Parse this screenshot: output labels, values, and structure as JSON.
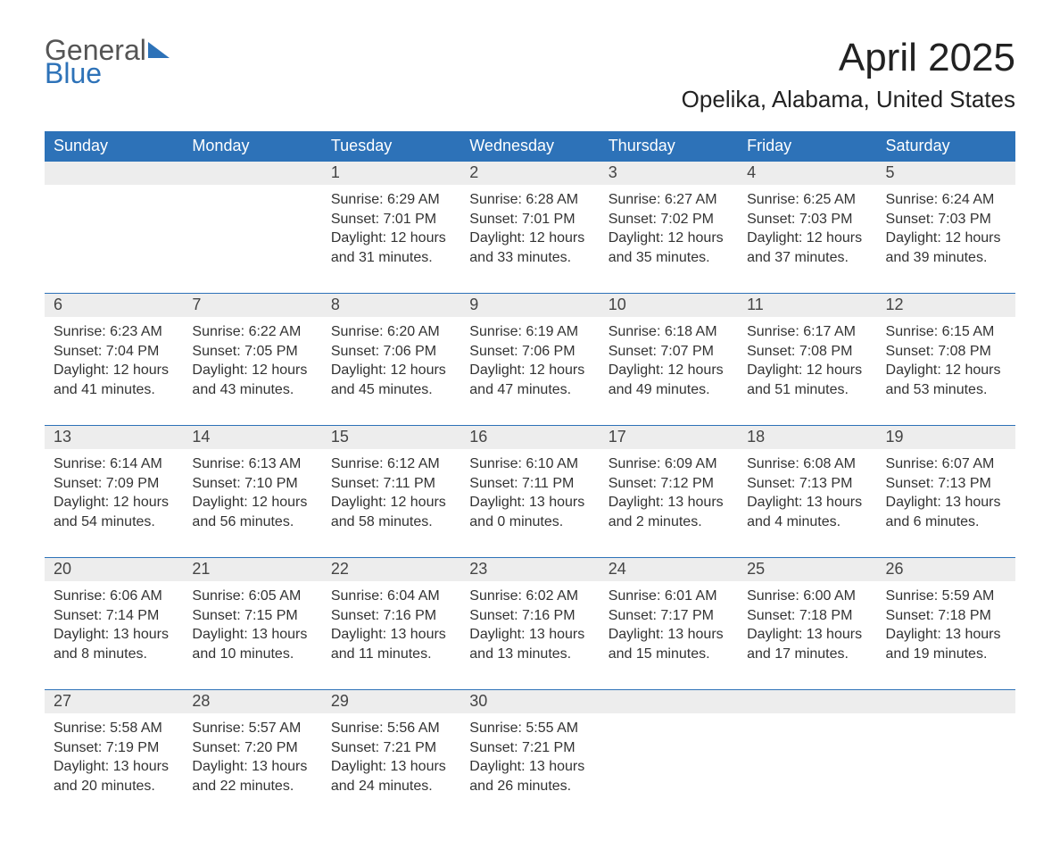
{
  "logo": {
    "general": "General",
    "blue": "Blue"
  },
  "title": "April 2025",
  "location": "Opelika, Alabama, United States",
  "colors": {
    "header_bg": "#2d72b8",
    "header_text": "#ffffff",
    "daynum_bg": "#ededed",
    "text": "#333333",
    "row_border": "#2d72b8",
    "page_bg": "#ffffff"
  },
  "typography": {
    "title_fontsize": 44,
    "location_fontsize": 26,
    "header_fontsize": 18,
    "daynum_fontsize": 18,
    "body_fontsize": 16
  },
  "weekday_headers": [
    "Sunday",
    "Monday",
    "Tuesday",
    "Wednesday",
    "Thursday",
    "Friday",
    "Saturday"
  ],
  "weeks": [
    [
      null,
      null,
      {
        "n": "1",
        "sr": "Sunrise: 6:29 AM",
        "ss": "Sunset: 7:01 PM",
        "d1": "Daylight: 12 hours",
        "d2": "and 31 minutes."
      },
      {
        "n": "2",
        "sr": "Sunrise: 6:28 AM",
        "ss": "Sunset: 7:01 PM",
        "d1": "Daylight: 12 hours",
        "d2": "and 33 minutes."
      },
      {
        "n": "3",
        "sr": "Sunrise: 6:27 AM",
        "ss": "Sunset: 7:02 PM",
        "d1": "Daylight: 12 hours",
        "d2": "and 35 minutes."
      },
      {
        "n": "4",
        "sr": "Sunrise: 6:25 AM",
        "ss": "Sunset: 7:03 PM",
        "d1": "Daylight: 12 hours",
        "d2": "and 37 minutes."
      },
      {
        "n": "5",
        "sr": "Sunrise: 6:24 AM",
        "ss": "Sunset: 7:03 PM",
        "d1": "Daylight: 12 hours",
        "d2": "and 39 minutes."
      }
    ],
    [
      {
        "n": "6",
        "sr": "Sunrise: 6:23 AM",
        "ss": "Sunset: 7:04 PM",
        "d1": "Daylight: 12 hours",
        "d2": "and 41 minutes."
      },
      {
        "n": "7",
        "sr": "Sunrise: 6:22 AM",
        "ss": "Sunset: 7:05 PM",
        "d1": "Daylight: 12 hours",
        "d2": "and 43 minutes."
      },
      {
        "n": "8",
        "sr": "Sunrise: 6:20 AM",
        "ss": "Sunset: 7:06 PM",
        "d1": "Daylight: 12 hours",
        "d2": "and 45 minutes."
      },
      {
        "n": "9",
        "sr": "Sunrise: 6:19 AM",
        "ss": "Sunset: 7:06 PM",
        "d1": "Daylight: 12 hours",
        "d2": "and 47 minutes."
      },
      {
        "n": "10",
        "sr": "Sunrise: 6:18 AM",
        "ss": "Sunset: 7:07 PM",
        "d1": "Daylight: 12 hours",
        "d2": "and 49 minutes."
      },
      {
        "n": "11",
        "sr": "Sunrise: 6:17 AM",
        "ss": "Sunset: 7:08 PM",
        "d1": "Daylight: 12 hours",
        "d2": "and 51 minutes."
      },
      {
        "n": "12",
        "sr": "Sunrise: 6:15 AM",
        "ss": "Sunset: 7:08 PM",
        "d1": "Daylight: 12 hours",
        "d2": "and 53 minutes."
      }
    ],
    [
      {
        "n": "13",
        "sr": "Sunrise: 6:14 AM",
        "ss": "Sunset: 7:09 PM",
        "d1": "Daylight: 12 hours",
        "d2": "and 54 minutes."
      },
      {
        "n": "14",
        "sr": "Sunrise: 6:13 AM",
        "ss": "Sunset: 7:10 PM",
        "d1": "Daylight: 12 hours",
        "d2": "and 56 minutes."
      },
      {
        "n": "15",
        "sr": "Sunrise: 6:12 AM",
        "ss": "Sunset: 7:11 PM",
        "d1": "Daylight: 12 hours",
        "d2": "and 58 minutes."
      },
      {
        "n": "16",
        "sr": "Sunrise: 6:10 AM",
        "ss": "Sunset: 7:11 PM",
        "d1": "Daylight: 13 hours",
        "d2": "and 0 minutes."
      },
      {
        "n": "17",
        "sr": "Sunrise: 6:09 AM",
        "ss": "Sunset: 7:12 PM",
        "d1": "Daylight: 13 hours",
        "d2": "and 2 minutes."
      },
      {
        "n": "18",
        "sr": "Sunrise: 6:08 AM",
        "ss": "Sunset: 7:13 PM",
        "d1": "Daylight: 13 hours",
        "d2": "and 4 minutes."
      },
      {
        "n": "19",
        "sr": "Sunrise: 6:07 AM",
        "ss": "Sunset: 7:13 PM",
        "d1": "Daylight: 13 hours",
        "d2": "and 6 minutes."
      }
    ],
    [
      {
        "n": "20",
        "sr": "Sunrise: 6:06 AM",
        "ss": "Sunset: 7:14 PM",
        "d1": "Daylight: 13 hours",
        "d2": "and 8 minutes."
      },
      {
        "n": "21",
        "sr": "Sunrise: 6:05 AM",
        "ss": "Sunset: 7:15 PM",
        "d1": "Daylight: 13 hours",
        "d2": "and 10 minutes."
      },
      {
        "n": "22",
        "sr": "Sunrise: 6:04 AM",
        "ss": "Sunset: 7:16 PM",
        "d1": "Daylight: 13 hours",
        "d2": "and 11 minutes."
      },
      {
        "n": "23",
        "sr": "Sunrise: 6:02 AM",
        "ss": "Sunset: 7:16 PM",
        "d1": "Daylight: 13 hours",
        "d2": "and 13 minutes."
      },
      {
        "n": "24",
        "sr": "Sunrise: 6:01 AM",
        "ss": "Sunset: 7:17 PM",
        "d1": "Daylight: 13 hours",
        "d2": "and 15 minutes."
      },
      {
        "n": "25",
        "sr": "Sunrise: 6:00 AM",
        "ss": "Sunset: 7:18 PM",
        "d1": "Daylight: 13 hours",
        "d2": "and 17 minutes."
      },
      {
        "n": "26",
        "sr": "Sunrise: 5:59 AM",
        "ss": "Sunset: 7:18 PM",
        "d1": "Daylight: 13 hours",
        "d2": "and 19 minutes."
      }
    ],
    [
      {
        "n": "27",
        "sr": "Sunrise: 5:58 AM",
        "ss": "Sunset: 7:19 PM",
        "d1": "Daylight: 13 hours",
        "d2": "and 20 minutes."
      },
      {
        "n": "28",
        "sr": "Sunrise: 5:57 AM",
        "ss": "Sunset: 7:20 PM",
        "d1": "Daylight: 13 hours",
        "d2": "and 22 minutes."
      },
      {
        "n": "29",
        "sr": "Sunrise: 5:56 AM",
        "ss": "Sunset: 7:21 PM",
        "d1": "Daylight: 13 hours",
        "d2": "and 24 minutes."
      },
      {
        "n": "30",
        "sr": "Sunrise: 5:55 AM",
        "ss": "Sunset: 7:21 PM",
        "d1": "Daylight: 13 hours",
        "d2": "and 26 minutes."
      },
      null,
      null,
      null
    ]
  ]
}
